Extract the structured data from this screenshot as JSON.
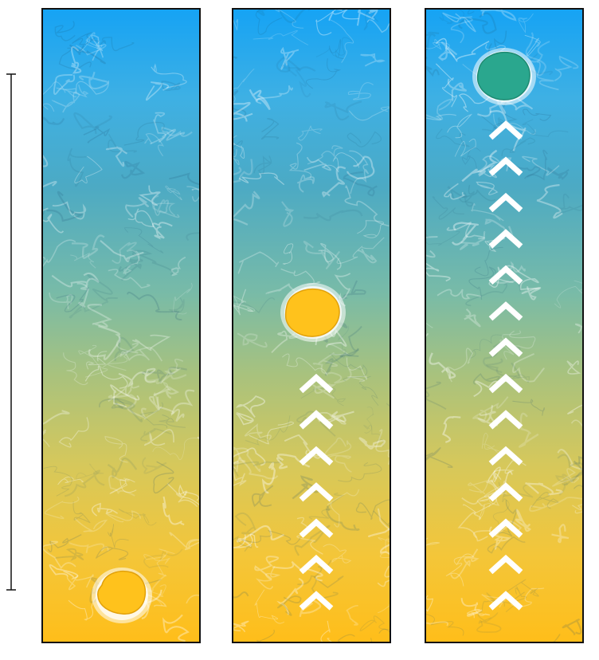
{
  "diagram": {
    "panels": [
      {
        "id": "panel-1",
        "stage": 1,
        "cell_color": "#ffc21c",
        "cell_outline": "#e2a10a",
        "arrow_count": 0
      },
      {
        "id": "panel-2",
        "stage": 2,
        "cell_color": "#ffc21c",
        "cell_outline": "#e2a10a",
        "arrow_count": 7
      },
      {
        "id": "panel-3",
        "stage": 3,
        "cell_color": "#2aa78e",
        "cell_outline": "#1d8a72",
        "arrow_count": 14
      }
    ],
    "gradient": {
      "top_color": "#16a3f4",
      "bottom_color": "#ffbe1a"
    },
    "arrow_color": "#ffffff",
    "scale_bar_color": "#111111"
  }
}
